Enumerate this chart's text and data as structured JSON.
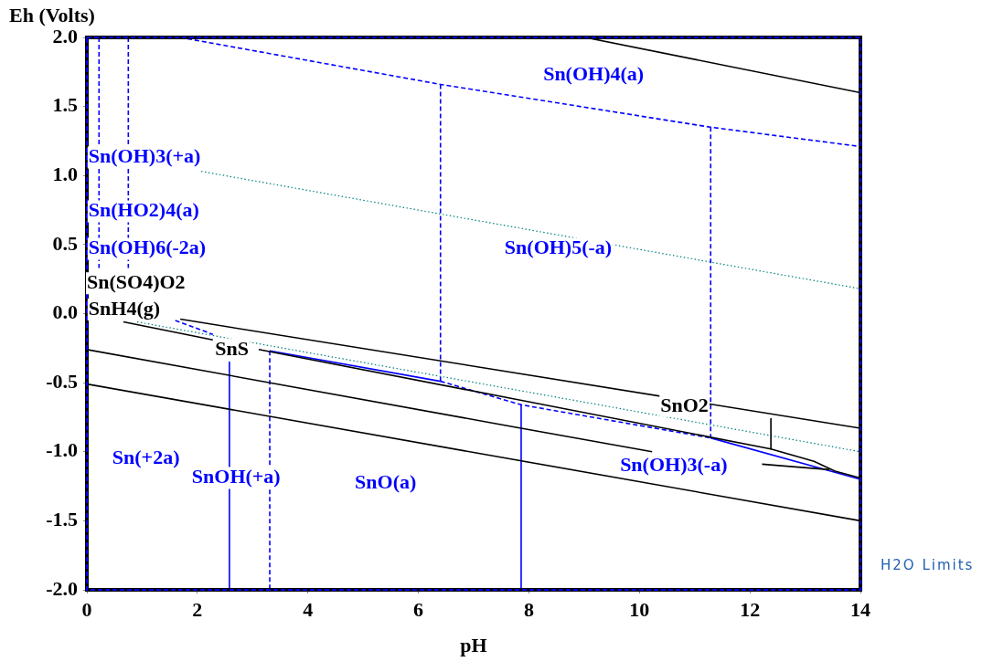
{
  "chart_data": {
    "type": "line",
    "xlabel": "pH",
    "ylabel": "Eh (Volts)",
    "xlim": [
      0,
      14
    ],
    "ylim": [
      -2,
      2
    ],
    "xticks": [
      0,
      2,
      4,
      6,
      8,
      10,
      12,
      14
    ],
    "yticks": [
      {
        "value": -2,
        "label": "-2.0"
      },
      -1.5,
      {
        "value": -1,
        "label": "-1.0"
      },
      -0.5,
      {
        "value": 0,
        "label": "0.0"
      },
      0.5,
      {
        "value": 1,
        "label": "1.0"
      },
      1.5,
      {
        "value": 2,
        "label": "2.0"
      }
    ],
    "grid": false,
    "marker": "none",
    "series": [
      {
        "color": "#000000",
        "line_style": "solid",
        "x": [
          9.02,
          14
        ],
        "values": [
          2.0,
          1.6
        ]
      },
      {
        "color": "#000000",
        "line_style": "solid",
        "x": [
          1.69,
          14
        ],
        "values": [
          -0.04,
          -0.83
        ]
      },
      {
        "color": "#000000",
        "line_style": "solid",
        "x": [
          0.66,
          2.28
        ],
        "values": [
          -0.06,
          -0.19
        ]
      },
      {
        "color": "#000000",
        "line_style": "solid",
        "x": [
          3.11,
          7.76,
          12.38,
          13.16,
          13.54,
          14
        ],
        "values": [
          -0.26,
          -0.62,
          -0.98,
          -1.07,
          -1.14,
          -1.19
        ]
      },
      {
        "color": "#000000",
        "line_style": "solid",
        "x": [
          12.38,
          12.38
        ],
        "values": [
          -0.76,
          -0.98
        ]
      },
      {
        "color": "#000000",
        "line_style": "solid",
        "x": [
          0,
          7.72,
          10.23
        ],
        "values": [
          -0.26,
          -0.82,
          -1.0
        ]
      },
      {
        "color": "#000000",
        "line_style": "solid",
        "x": [
          12.22,
          13.44
        ],
        "values": [
          -1.09,
          -1.13
        ]
      },
      {
        "color": "#000000",
        "line_style": "solid",
        "x": [
          0,
          14
        ],
        "values": [
          -0.51,
          -1.5
        ]
      },
      {
        "color": "#0000ff",
        "line_style": "dashed",
        "x": [
          1.69,
          6.4,
          11.29,
          14
        ],
        "values": [
          2.0,
          1.66,
          1.35,
          1.21
        ]
      },
      {
        "color": "#0000ff",
        "line_style": "dashed",
        "x": [
          0.22,
          0.22
        ],
        "values": [
          2.0,
          0.33
        ]
      },
      {
        "color": "#0000ff",
        "line_style": "dashed",
        "x": [
          0.75,
          0.75
        ],
        "values": [
          2.0,
          0.33
        ]
      },
      {
        "color": "#0000ff",
        "line_style": "dashed",
        "x": [
          1.6,
          2.28
        ],
        "values": [
          -0.05,
          -0.15
        ]
      },
      {
        "color": "#0000ff",
        "line_style": "solid",
        "x": [
          3.31,
          6.4
        ],
        "values": [
          -0.27,
          -0.49
        ]
      },
      {
        "color": "#0000ff",
        "line_style": "dashed",
        "x": [
          6.4,
          7.86,
          11.29
        ],
        "values": [
          -0.49,
          -0.66,
          -0.9
        ]
      },
      {
        "color": "#0000ff",
        "line_style": "solid",
        "x": [
          11.29,
          14
        ],
        "values": [
          -0.9,
          -1.2
        ]
      },
      {
        "color": "#0000ff",
        "line_style": "solid",
        "x": [
          2.58,
          2.58
        ],
        "values": [
          -0.35,
          -2.0
        ]
      },
      {
        "color": "#0000ff",
        "line_style": "dashed",
        "x": [
          3.31,
          3.31
        ],
        "values": [
          -0.27,
          -2.0
        ]
      },
      {
        "color": "#0000ff",
        "line_style": "dashed",
        "x": [
          6.4,
          6.4
        ],
        "values": [
          1.66,
          -0.49
        ]
      },
      {
        "color": "#0000ff",
        "line_style": "solid",
        "x": [
          7.86,
          7.86
        ],
        "values": [
          -0.66,
          -2.0
        ]
      },
      {
        "color": "#0000ff",
        "line_style": "dashed",
        "x": [
          11.29,
          11.29
        ],
        "values": [
          1.35,
          -0.9
        ]
      },
      {
        "color": "#008080",
        "line_style": "dotted",
        "x": [
          2.07,
          14
        ],
        "values": [
          1.03,
          0.18
        ]
      },
      {
        "color": "#008080",
        "line_style": "dotted",
        "x": [
          0.91,
          14
        ],
        "values": [
          -0.06,
          -1.0
        ]
      }
    ],
    "annotations": [
      "Sn(OH)4(a)",
      "Sn(OH)3(+a)",
      "Sn(HO2)4(a)",
      "Sn(OH)6(-2a)",
      "Sn(SO4)O2",
      "SnH4(g)",
      "Sn(OH)5(-a)",
      "SnS",
      "SnO2",
      "Sn(+2a)",
      "SnOH(+a)",
      "SnO(a)",
      "Sn(OH)3(-a)",
      "H2O Limits"
    ]
  }
}
